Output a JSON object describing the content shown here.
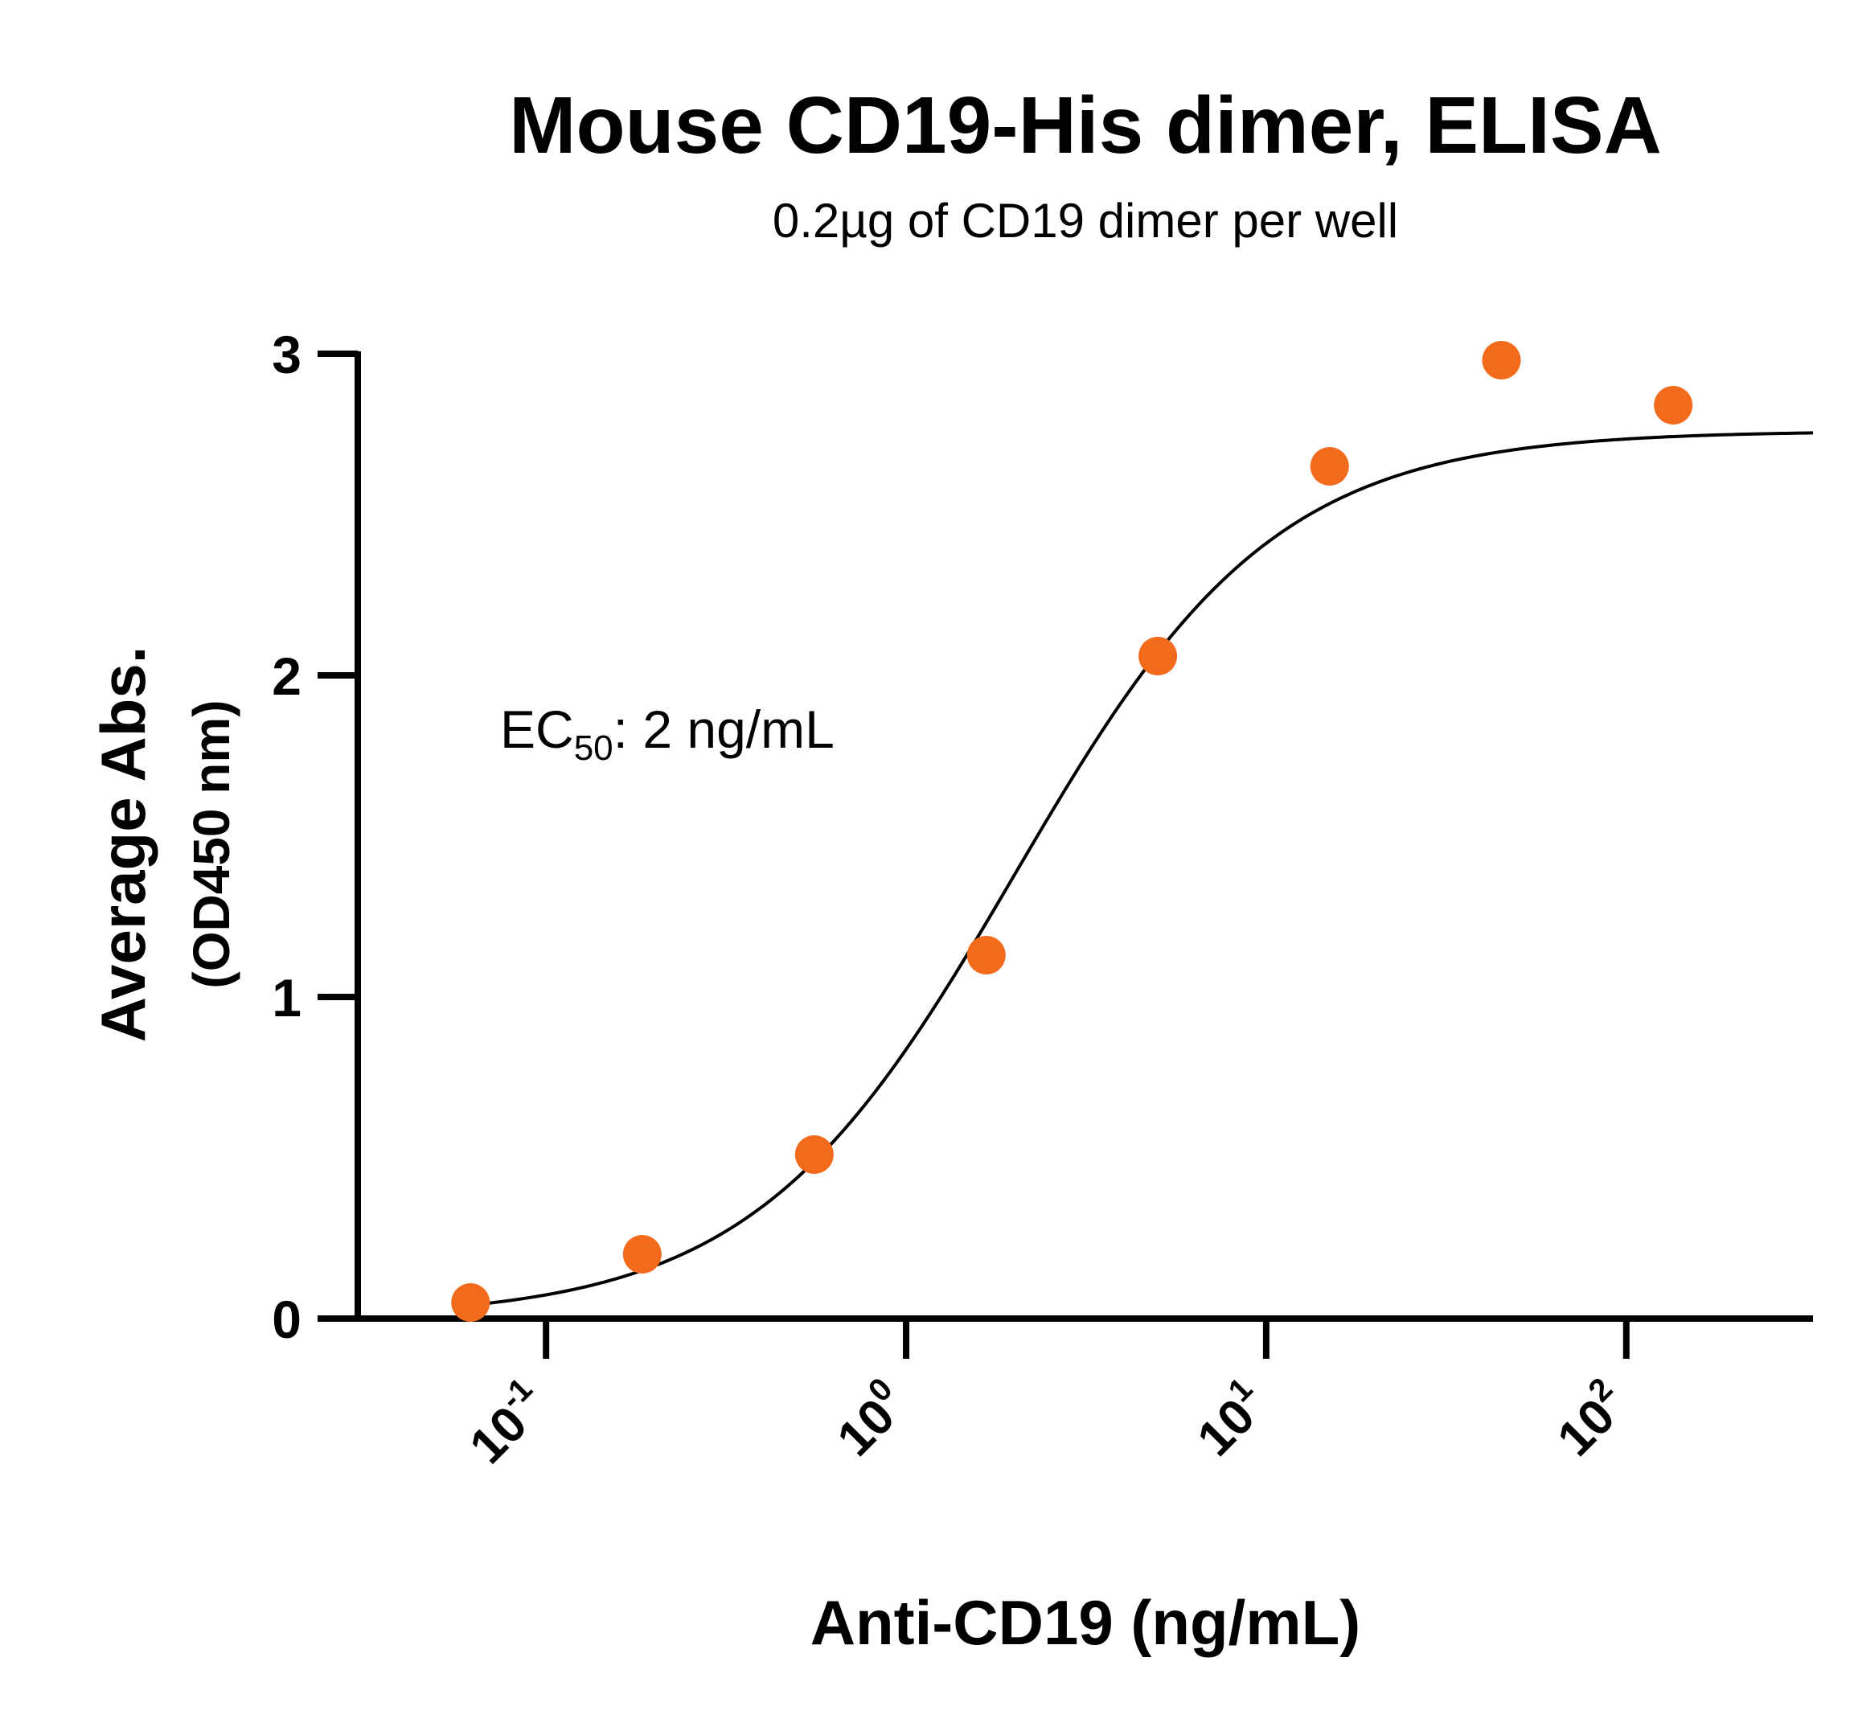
{
  "chart_data": {
    "type": "scatter",
    "title": "Mouse CD19-His dimer, ELISA",
    "subtitle": "0.2µg of CD19 dimer per well",
    "xlabel": "Anti-CD19 (ng/mL)",
    "ylabel": "Average Abs.",
    "ylabel_sub": "(OD450 nm)",
    "x_scale": "log10",
    "xlim": [
      0.03,
      330
    ],
    "ylim": [
      0,
      3
    ],
    "x_ticks": [
      {
        "base": "10",
        "exp": "-1",
        "value": 0.1
      },
      {
        "base": "10",
        "exp": "0",
        "value": 1
      },
      {
        "base": "10",
        "exp": "1",
        "value": 10
      },
      {
        "base": "10",
        "exp": "2",
        "value": 100
      }
    ],
    "y_ticks": [
      "0",
      "1",
      "2",
      "3"
    ],
    "annotation": {
      "prefix": "EC",
      "subscript": "50",
      "suffix": ": 2 ng/mL"
    },
    "point_color": "#F26B1D",
    "line_color": "#000000",
    "points": [
      {
        "x": 0.0617,
        "y": 0.05
      },
      {
        "x": 0.185,
        "y": 0.2
      },
      {
        "x": 0.556,
        "y": 0.51
      },
      {
        "x": 1.67,
        "y": 1.13
      },
      {
        "x": 5.0,
        "y": 2.06
      },
      {
        "x": 15.0,
        "y": 2.65
      },
      {
        "x": 45.0,
        "y": 2.98
      },
      {
        "x": 135.0,
        "y": 2.84
      }
    ],
    "fit": {
      "model": "4PL",
      "bottom": 0.0,
      "top": 2.76,
      "ec50": 2.0,
      "hill": 1.2
    },
    "grid": false,
    "legend": "none"
  }
}
